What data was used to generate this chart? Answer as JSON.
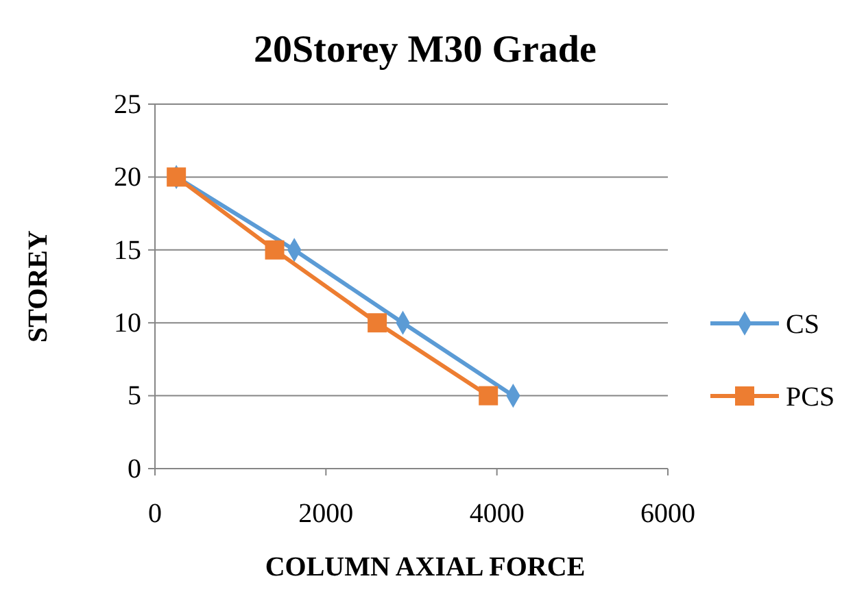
{
  "chart_data": {
    "type": "line",
    "title": "20Storey M30 Grade",
    "xlabel": "COLUMN AXIAL FORCE",
    "ylabel": "STOREY",
    "xlim": [
      0,
      6000
    ],
    "xticks": [
      0,
      2000,
      4000,
      6000
    ],
    "ylim": [
      0,
      25
    ],
    "yticks": [
      0,
      5,
      10,
      15,
      20,
      25
    ],
    "grid": "y",
    "legend": "right",
    "series": [
      {
        "name": "CS",
        "color": "#5b9bd5",
        "marker": "diamond",
        "x": [
          250,
          1630,
          2900,
          4190
        ],
        "values": [
          20,
          15,
          10,
          5
        ]
      },
      {
        "name": "PCS",
        "color": "#ed7d31",
        "marker": "square",
        "x": [
          250,
          1400,
          2600,
          3900
        ],
        "values": [
          20,
          15,
          10,
          5
        ]
      }
    ]
  }
}
